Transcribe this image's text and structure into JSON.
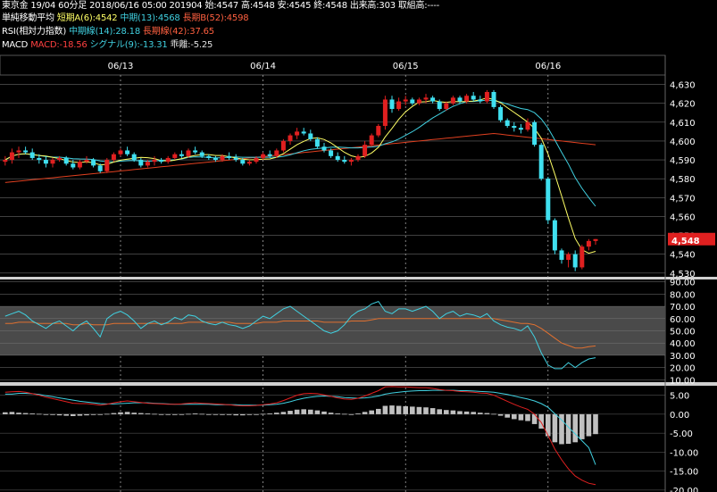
{
  "header": {
    "line1": "東京金 19/04 60分足 2018/06/16 05:00 201904 始:4547 高:4548 安:4545 終:4548 出来高:303 取組高:----",
    "ma": {
      "label": "単純移動平均",
      "short": "短期A(6):4542",
      "mid": "中期(13):4568",
      "long": "長期B(52):4598"
    },
    "rsi": {
      "label": "RSI(相対力指数)",
      "mid": "中期線(14):28.18",
      "long": "長期線(42):37.65"
    },
    "macd": {
      "label": "MACD",
      "macd": "MACD:-18.56",
      "signal": "シグナル(9):-13.31",
      "osc": "乖離:-5.25"
    }
  },
  "colors": {
    "up": "#e02020",
    "down": "#40e0f0",
    "ma_short": "#ffff66",
    "ma_mid": "#40d0e0",
    "ma_long": "#e04020",
    "rsi_mid": "#40d0e0",
    "rsi_long": "#e07030",
    "macd": "#e02020",
    "signal": "#40d0e0",
    "hist": "#c0c0c0",
    "last_price_bg": "#e02020"
  },
  "last_price_label": "4,548",
  "chart_data": [
    {
      "type": "candlestick",
      "x_labels": [
        "06/13",
        "06/14",
        "06/15",
        "06/16"
      ],
      "y_ticks": [
        "4,630",
        "4,620",
        "4,610",
        "4,600",
        "4,590",
        "4,580",
        "4,570",
        "4,560",
        "4,550",
        "4,540",
        "4,530"
      ],
      "ylim": [
        4528,
        4635
      ],
      "candles": [
        [
          4589,
          4592,
          4587,
          4590
        ],
        [
          4590,
          4596,
          4588,
          4594
        ],
        [
          4594,
          4597,
          4591,
          4595
        ],
        [
          4595,
          4597,
          4593,
          4594
        ],
        [
          4594,
          4596,
          4590,
          4591
        ],
        [
          4591,
          4593,
          4588,
          4590
        ],
        [
          4590,
          4592,
          4586,
          4588
        ],
        [
          4588,
          4591,
          4586,
          4590
        ],
        [
          4590,
          4592,
          4589,
          4591
        ],
        [
          4591,
          4592,
          4587,
          4588
        ],
        [
          4588,
          4590,
          4585,
          4586
        ],
        [
          4586,
          4590,
          4585,
          4589
        ],
        [
          4589,
          4592,
          4588,
          4590
        ],
        [
          4590,
          4591,
          4586,
          4587
        ],
        [
          4587,
          4588,
          4583,
          4584
        ],
        [
          4584,
          4591,
          4583,
          4590
        ],
        [
          4590,
          4594,
          4589,
          4593
        ],
        [
          4593,
          4596,
          4592,
          4595
        ],
        [
          4595,
          4597,
          4592,
          4593
        ],
        [
          4593,
          4594,
          4589,
          4590
        ],
        [
          4590,
          4591,
          4586,
          4587
        ],
        [
          4587,
          4590,
          4586,
          4589
        ],
        [
          4589,
          4592,
          4587,
          4590
        ],
        [
          4590,
          4591,
          4588,
          4589
        ],
        [
          4589,
          4592,
          4588,
          4591
        ],
        [
          4591,
          4594,
          4590,
          4593
        ],
        [
          4593,
          4595,
          4591,
          4592
        ],
        [
          4592,
          4596,
          4591,
          4595
        ],
        [
          4595,
          4597,
          4593,
          4594
        ],
        [
          4594,
          4595,
          4591,
          4592
        ],
        [
          4592,
          4593,
          4590,
          4591
        ],
        [
          4591,
          4592,
          4589,
          4590
        ],
        [
          4590,
          4593,
          4589,
          4592
        ],
        [
          4592,
          4594,
          4590,
          4591
        ],
        [
          4591,
          4593,
          4589,
          4590
        ],
        [
          4590,
          4591,
          4587,
          4588
        ],
        [
          4588,
          4590,
          4587,
          4589
        ],
        [
          4589,
          4592,
          4588,
          4591
        ],
        [
          4591,
          4594,
          4590,
          4593
        ],
        [
          4593,
          4595,
          4591,
          4592
        ],
        [
          4592,
          4596,
          4591,
          4595
        ],
        [
          4595,
          4601,
          4594,
          4600
        ],
        [
          4600,
          4604,
          4598,
          4603
        ],
        [
          4603,
          4607,
          4601,
          4605
        ],
        [
          4605,
          4607,
          4603,
          4604
        ],
        [
          4604,
          4606,
          4600,
          4601
        ],
        [
          4601,
          4602,
          4596,
          4597
        ],
        [
          4597,
          4599,
          4594,
          4595
        ],
        [
          4595,
          4596,
          4591,
          4592
        ],
        [
          4592,
          4594,
          4589,
          4590
        ],
        [
          4590,
          4592,
          4588,
          4589
        ],
        [
          4589,
          4591,
          4587,
          4590
        ],
        [
          4590,
          4593,
          4589,
          4592
        ],
        [
          4592,
          4600,
          4591,
          4598
        ],
        [
          4598,
          4604,
          4597,
          4603
        ],
        [
          4603,
          4609,
          4602,
          4608
        ],
        [
          4608,
          4624,
          4606,
          4622
        ],
        [
          4622,
          4624,
          4615,
          4617
        ],
        [
          4617,
          4623,
          4616,
          4621
        ],
        [
          4621,
          4624,
          4619,
          4622
        ],
        [
          4622,
          4623,
          4619,
          4620
        ],
        [
          4620,
          4623,
          4619,
          4622
        ],
        [
          4622,
          4625,
          4620,
          4623
        ],
        [
          4623,
          4624,
          4620,
          4621
        ],
        [
          4621,
          4622,
          4616,
          4617
        ],
        [
          4617,
          4621,
          4616,
          4620
        ],
        [
          4620,
          4624,
          4619,
          4623
        ],
        [
          4623,
          4624,
          4620,
          4621
        ],
        [
          4621,
          4625,
          4620,
          4624
        ],
        [
          4624,
          4626,
          4621,
          4622
        ],
        [
          4622,
          4624,
          4620,
          4621
        ],
        [
          4621,
          4627,
          4620,
          4626
        ],
        [
          4626,
          4627,
          4617,
          4618
        ],
        [
          4618,
          4619,
          4610,
          4611
        ],
        [
          4611,
          4612,
          4607,
          4608
        ],
        [
          4608,
          4610,
          4605,
          4607
        ],
        [
          4607,
          4609,
          4604,
          4606
        ],
        [
          4606,
          4612,
          4605,
          4610
        ],
        [
          4610,
          4611,
          4597,
          4598
        ],
        [
          4598,
          4599,
          4579,
          4580
        ],
        [
          4580,
          4581,
          4556,
          4558
        ],
        [
          4558,
          4559,
          4540,
          4542
        ],
        [
          4542,
          4543,
          4535,
          4537
        ],
        [
          4537,
          4541,
          4533,
          4540
        ],
        [
          4540,
          4542,
          4531,
          4533
        ],
        [
          4533,
          4545,
          4532,
          4544
        ],
        [
          4544,
          4548,
          4542,
          4547
        ],
        [
          4547,
          4548,
          4545,
          4548
        ]
      ],
      "ma_short_last": 4542,
      "ma_mid_last": 4568,
      "ma_long_last": 4598
    },
    {
      "type": "line",
      "name": "RSI",
      "y_ticks": [
        "90.00",
        "80.00",
        "70.00",
        "60.00",
        "50.00",
        "40.00",
        "30.00",
        "20.00",
        "10.00"
      ],
      "ylim": [
        8,
        92
      ],
      "band": [
        30,
        70
      ],
      "series": [
        {
          "values": [
            62,
            64,
            66,
            63,
            58,
            55,
            52,
            56,
            58,
            54,
            50,
            55,
            58,
            52,
            45,
            60,
            64,
            66,
            63,
            58,
            52,
            56,
            58,
            55,
            57,
            61,
            59,
            63,
            62,
            58,
            56,
            55,
            57,
            55,
            54,
            52,
            54,
            58,
            62,
            60,
            64,
            68,
            70,
            66,
            62,
            58,
            54,
            50,
            48,
            50,
            55,
            62,
            66,
            68,
            72,
            74,
            66,
            64,
            68,
            68,
            66,
            68,
            70,
            66,
            60,
            64,
            66,
            62,
            64,
            63,
            61,
            64,
            58,
            55,
            53,
            52,
            50,
            54,
            45,
            32,
            22,
            19,
            19,
            24,
            20,
            24,
            27,
            28
          ]
        },
        {
          "values": [
            56,
            56,
            57,
            57,
            57,
            56,
            56,
            56,
            56,
            56,
            55,
            55,
            56,
            55,
            55,
            55,
            56,
            56,
            56,
            56,
            56,
            56,
            56,
            56,
            56,
            56,
            56,
            57,
            57,
            57,
            57,
            57,
            57,
            57,
            56,
            56,
            56,
            56,
            57,
            57,
            57,
            58,
            58,
            58,
            58,
            58,
            58,
            57,
            57,
            57,
            57,
            58,
            58,
            58,
            59,
            60,
            60,
            60,
            60,
            60,
            60,
            60,
            60,
            60,
            60,
            60,
            60,
            60,
            60,
            60,
            60,
            60,
            60,
            59,
            58,
            57,
            56,
            56,
            55,
            52,
            48,
            44,
            40,
            38,
            36,
            36,
            37,
            37.65
          ]
        }
      ]
    },
    {
      "type": "bar",
      "name": "MACD",
      "y_ticks": [
        "5.00",
        "0.00",
        "-5.00",
        "-10.00",
        "-15.00",
        "-20.00"
      ],
      "ylim": [
        -20.5,
        7.5
      ],
      "histogram": [
        0.5,
        0.6,
        0.4,
        0.3,
        0.2,
        0.1,
        -0.1,
        -0.2,
        -0.3,
        -0.4,
        -0.5,
        -0.4,
        -0.3,
        -0.2,
        -0.1,
        0.1,
        0.3,
        0.5,
        0.6,
        0.4,
        0.3,
        0.2,
        0.1,
        0.0,
        -0.1,
        -0.2,
        -0.1,
        0.1,
        0.2,
        0.1,
        0.0,
        -0.1,
        -0.2,
        -0.2,
        -0.3,
        -0.3,
        -0.2,
        -0.1,
        0.1,
        0.2,
        0.4,
        0.6,
        0.9,
        1.2,
        1.3,
        1.2,
        1.0,
        0.7,
        0.4,
        0.2,
        0.1,
        0.0,
        0.2,
        0.6,
        1.0,
        1.4,
        2.2,
        2.3,
        2.2,
        2.1,
        2.0,
        1.9,
        1.8,
        1.6,
        1.3,
        1.1,
        1.0,
        0.8,
        0.7,
        0.6,
        0.4,
        0.3,
        0.1,
        -0.4,
        -0.9,
        -1.3,
        -1.6,
        -1.8,
        -2.6,
        -3.8,
        -5.8,
        -7.4,
        -7.9,
        -7.8,
        -7.4,
        -6.6,
        -5.8,
        -5.25
      ],
      "series": [
        {
          "name": "MACD",
          "values": [
            5.8,
            5.9,
            6.0,
            5.8,
            5.4,
            5.0,
            4.5,
            4.1,
            3.7,
            3.3,
            2.9,
            2.8,
            2.8,
            2.6,
            2.4,
            2.6,
            3.0,
            3.3,
            3.5,
            3.3,
            3.1,
            2.9,
            2.8,
            2.7,
            2.6,
            2.6,
            2.7,
            2.9,
            3.0,
            2.9,
            2.8,
            2.7,
            2.6,
            2.5,
            2.3,
            2.2,
            2.2,
            2.3,
            2.5,
            2.7,
            3.0,
            3.6,
            4.3,
            5.0,
            5.4,
            5.5,
            5.4,
            5.1,
            4.7,
            4.3,
            4.0,
            3.9,
            4.2,
            4.8,
            5.5,
            6.2,
            7.2,
            7.3,
            7.2,
            7.2,
            7.1,
            7.0,
            7.0,
            6.8,
            6.5,
            6.3,
            6.2,
            6.0,
            5.9,
            5.8,
            5.6,
            5.5,
            5.0,
            4.2,
            3.4,
            2.6,
            1.9,
            1.3,
            0.0,
            -2.2,
            -5.6,
            -9.2,
            -12.0,
            -14.4,
            -16.3,
            -17.4,
            -18.2,
            -18.56
          ]
        },
        {
          "name": "シグナル(9)",
          "values": [
            5.3,
            5.3,
            5.5,
            5.5,
            5.4,
            5.2,
            4.9,
            4.6,
            4.3,
            4.0,
            3.7,
            3.4,
            3.2,
            3.0,
            2.8,
            2.7,
            2.7,
            2.8,
            2.9,
            3.0,
            3.0,
            3.0,
            2.9,
            2.8,
            2.7,
            2.6,
            2.6,
            2.6,
            2.6,
            2.6,
            2.6,
            2.5,
            2.5,
            2.5,
            2.5,
            2.4,
            2.4,
            2.4,
            2.4,
            2.5,
            2.6,
            2.9,
            3.3,
            3.8,
            4.2,
            4.5,
            4.7,
            4.8,
            4.7,
            4.6,
            4.4,
            4.3,
            4.2,
            4.3,
            4.5,
            4.8,
            5.3,
            5.6,
            5.8,
            6.0,
            6.1,
            6.2,
            6.2,
            6.3,
            6.3,
            6.3,
            6.3,
            6.2,
            6.2,
            6.1,
            6.0,
            5.9,
            5.8,
            5.5,
            5.2,
            4.8,
            4.4,
            4.0,
            3.5,
            2.8,
            1.8,
            0.1,
            -1.5,
            -3.4,
            -5.2,
            -7.0,
            -8.8,
            -13.31
          ]
        }
      ]
    }
  ]
}
